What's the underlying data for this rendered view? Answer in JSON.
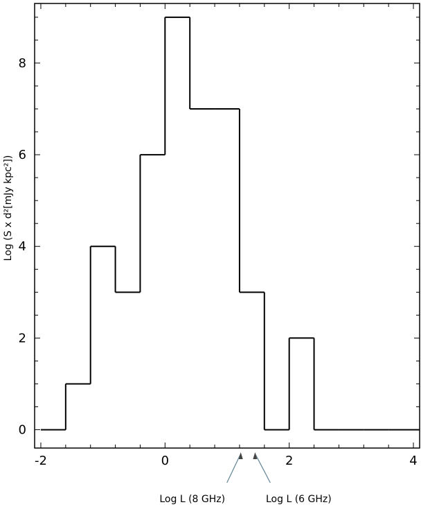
{
  "chart_data": {
    "type": "bar",
    "subtype": "step-histogram",
    "title": "",
    "xlabel": "",
    "ylabel": "Log (S x d²[mJy kpc²])",
    "xlim": [
      -2.1,
      4.1
    ],
    "ylim": [
      -0.4,
      9.3
    ],
    "xticks": [
      -2,
      0,
      2,
      4
    ],
    "yticks": [
      0,
      2,
      4,
      6,
      8
    ],
    "grid": false,
    "line_color": "#000000",
    "bin_edges": [
      -2.0,
      -1.6,
      -1.2,
      -0.8,
      -0.4,
      0.0,
      0.4,
      0.8,
      1.2,
      1.6,
      2.0,
      2.4,
      2.8,
      3.2,
      3.6,
      4.1
    ],
    "values": [
      0,
      1,
      4,
      3,
      6,
      9,
      7,
      7,
      3,
      0,
      2,
      0,
      0,
      0,
      0
    ],
    "annotations": [
      {
        "text": "Log L (8 GHz)",
        "x": 1.22
      },
      {
        "text": "Log L (6 GHz)",
        "x": 1.45
      }
    ]
  }
}
